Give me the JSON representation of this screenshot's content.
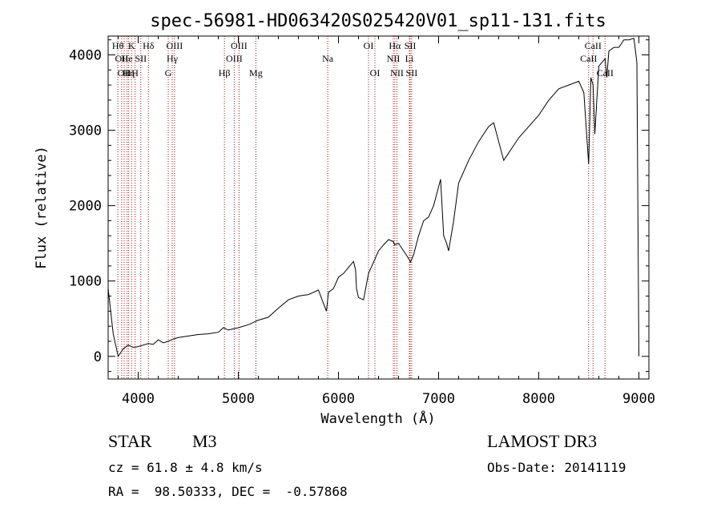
{
  "chart_data": {
    "type": "line",
    "title": "spec-56981-HD063420S025420V01_sp11-131.fits",
    "xlabel": "Wavelength (Å)",
    "ylabel": "Flux (relative)",
    "xlim": [
      3700,
      9100
    ],
    "ylim": [
      -300,
      4250
    ],
    "xticks": [
      4000,
      5000,
      6000,
      7000,
      8000,
      9000
    ],
    "yticks": [
      0,
      1000,
      2000,
      3000,
      4000
    ],
    "series": [
      {
        "name": "spectrum",
        "x": [
          3700,
          3750,
          3800,
          3850,
          3900,
          3950,
          4000,
          4050,
          4100,
          4150,
          4200,
          4250,
          4300,
          4350,
          4400,
          4500,
          4600,
          4700,
          4800,
          4850,
          4900,
          5000,
          5100,
          5200,
          5300,
          5400,
          5500,
          5600,
          5700,
          5800,
          5850,
          5880,
          5900,
          5950,
          6000,
          6050,
          6100,
          6150,
          6170,
          6180,
          6200,
          6250,
          6300,
          6350,
          6400,
          6450,
          6500,
          6550,
          6560,
          6600,
          6650,
          6700,
          6720,
          6750,
          6800,
          6850,
          6900,
          6950,
          7000,
          7020,
          7050,
          7080,
          7100,
          7150,
          7200,
          7300,
          7400,
          7500,
          7550,
          7600,
          7650,
          7700,
          7750,
          7800,
          7900,
          8000,
          8100,
          8200,
          8300,
          8400,
          8450,
          8498,
          8520,
          8542,
          8560,
          8600,
          8662,
          8680,
          8700,
          8750,
          8800,
          8850,
          8900,
          8950,
          8980,
          9000
        ],
        "y": [
          900,
          300,
          0,
          100,
          150,
          120,
          130,
          150,
          170,
          160,
          220,
          180,
          200,
          230,
          250,
          270,
          290,
          300,
          320,
          380,
          350,
          380,
          420,
          480,
          520,
          640,
          750,
          800,
          820,
          880,
          700,
          600,
          850,
          900,
          1050,
          1100,
          1180,
          1260,
          1150,
          900,
          780,
          750,
          1100,
          1250,
          1400,
          1480,
          1550,
          1520,
          1480,
          1500,
          1400,
          1300,
          1250,
          1350,
          1600,
          1800,
          1850,
          2000,
          2250,
          2350,
          1600,
          1500,
          1400,
          1800,
          2300,
          2600,
          2850,
          3050,
          3100,
          2850,
          2600,
          2700,
          2800,
          2900,
          3050,
          3200,
          3400,
          3550,
          3600,
          3650,
          3500,
          2550,
          3700,
          3600,
          2950,
          3850,
          3950,
          3700,
          4050,
          4100,
          4100,
          4200,
          4200,
          4220,
          3900,
          0
        ]
      }
    ],
    "lines": [
      {
        "wave": 3797,
        "label": "Hθ",
        "row": 1
      },
      {
        "wave": 3835,
        "label": "OII",
        "row": 2
      },
      {
        "wave": 3860,
        "label": "OII",
        "row": 3
      },
      {
        "wave": 3889,
        "label": "He",
        "row": 2
      },
      {
        "wave": 3905,
        "label": "Hη",
        "row": 3
      },
      {
        "wave": 3934,
        "label": "K",
        "row": 1
      },
      {
        "wave": 3969,
        "label": "H",
        "row": 3
      },
      {
        "wave": 4026,
        "label": "SII",
        "row": 2
      },
      {
        "wave": 4102,
        "label": "Hδ",
        "row": 1
      },
      {
        "wave": 4300,
        "label": "G",
        "row": 3
      },
      {
        "wave": 4340,
        "label": "Hγ",
        "row": 2
      },
      {
        "wave": 4363,
        "label": "OIII",
        "row": 1
      },
      {
        "wave": 4861,
        "label": "Hβ",
        "row": 3
      },
      {
        "wave": 4959,
        "label": "OIII",
        "row": 2
      },
      {
        "wave": 5007,
        "label": "OIII",
        "row": 1
      },
      {
        "wave": 5175,
        "label": "Mg",
        "row": 3
      },
      {
        "wave": 5893,
        "label": "Na",
        "row": 2
      },
      {
        "wave": 6300,
        "label": "OI",
        "row": 1
      },
      {
        "wave": 6364,
        "label": "OI",
        "row": 3
      },
      {
        "wave": 6548,
        "label": "NII",
        "row": 2
      },
      {
        "wave": 6563,
        "label": "Hα",
        "row": 1
      },
      {
        "wave": 6584,
        "label": "NII",
        "row": 3
      },
      {
        "wave": 6708,
        "label": "Li",
        "row": 2
      },
      {
        "wave": 6716,
        "label": "SII",
        "row": 1
      },
      {
        "wave": 6731,
        "label": "SII",
        "row": 3
      },
      {
        "wave": 8498,
        "label": "CaII",
        "row": 2
      },
      {
        "wave": 8542,
        "label": "CaII",
        "row": 1
      },
      {
        "wave": 8662,
        "label": "CaII",
        "row": 3
      }
    ]
  },
  "info": {
    "class": "STAR",
    "subclass": "M3",
    "survey": "LAMOST DR3",
    "cz": "cz = 61.8 ± 4.8 km/s",
    "obsdate": "Obs-Date: 20141119",
    "radec": "RA =  98.50333, DEC =  -0.57868"
  }
}
